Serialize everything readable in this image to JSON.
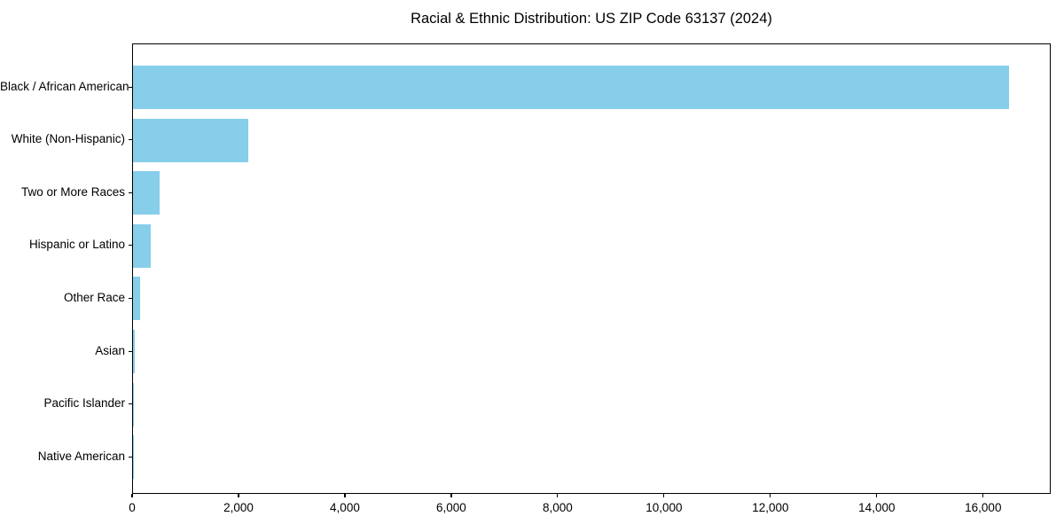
{
  "chart_data": {
    "type": "bar",
    "orientation": "horizontal",
    "title": "Racial & Ethnic Distribution: US ZIP Code 63137 (2024)",
    "categories": [
      "Black / African American",
      "White (Non-Hispanic)",
      "Two or More Races",
      "Hispanic or Latino",
      "Other Race",
      "Asian",
      "Pacific Islander",
      "Native American"
    ],
    "values": [
      16470,
      2170,
      500,
      340,
      130,
      30,
      10,
      5
    ],
    "xlabel": "",
    "ylabel": "",
    "xlim": [
      0,
      17270
    ],
    "x_ticks": [
      0,
      2000,
      4000,
      6000,
      8000,
      10000,
      12000,
      14000,
      16000
    ],
    "x_tick_labels": [
      "0",
      "2,000",
      "4,000",
      "6,000",
      "8,000",
      "10,000",
      "12,000",
      "14,000",
      "16,000"
    ],
    "bar_color": "#87CEEB",
    "axis_color": "#000000",
    "text_color": "#000000",
    "background_color": "#ffffff",
    "grid": false,
    "legend": false
  }
}
